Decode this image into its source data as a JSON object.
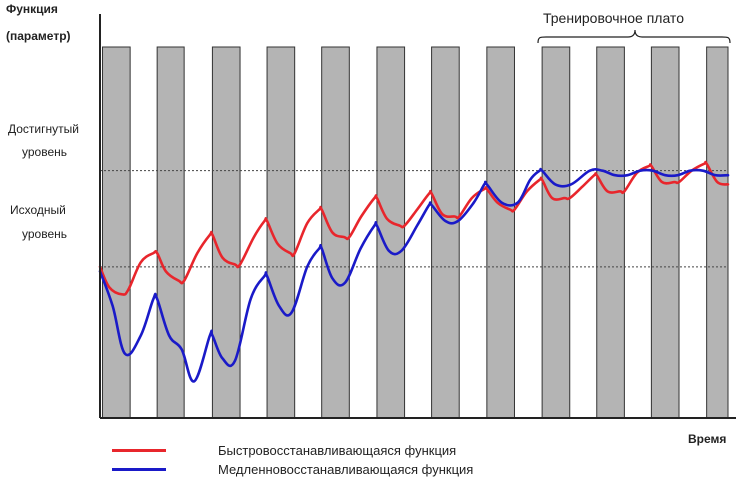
{
  "chart_data": {
    "type": "line",
    "ylabel": [
      "Функция",
      "(параметр)"
    ],
    "xlabel": "Время",
    "annotation": "Тренировочное плато",
    "ylim": [
      0,
      100
    ],
    "xlim": [
      0,
      100
    ],
    "y_levels": [
      {
        "name": "achieved",
        "lines": [
          "Достигнутый",
          "уровень"
        ],
        "value": 73
      },
      {
        "name": "baseline",
        "lines": [
          "Исходный",
          "уровень"
        ],
        "value": 52
      }
    ],
    "training_periods": [
      [
        0.4,
        4.8
      ],
      [
        9.1,
        13.4
      ],
      [
        17.9,
        22.3
      ],
      [
        26.6,
        31.0
      ],
      [
        35.3,
        39.7
      ],
      [
        44.1,
        48.5
      ],
      [
        52.8,
        57.2
      ],
      [
        61.6,
        66.0
      ],
      [
        70.4,
        74.8
      ],
      [
        79.1,
        83.5
      ],
      [
        87.8,
        92.2
      ],
      [
        96.6,
        100
      ]
    ],
    "series": [
      {
        "name": "Быстровосстанавливающаяся функция",
        "color": "#e8262c",
        "x": [
          0,
          1.5,
          3.5,
          4.5,
          6.5,
          8.5,
          9.1,
          10.5,
          12.5,
          13.4,
          15.5,
          17.5,
          17.9,
          19.5,
          21.5,
          22.3,
          24.5,
          26.2,
          26.6,
          28.3,
          30.3,
          31.0,
          33.0,
          34.9,
          35.3,
          37.0,
          38.9,
          39.7,
          41.6,
          43.7,
          44.1,
          45.7,
          47.7,
          48.5,
          50.5,
          52.4,
          52.8,
          54.5,
          56.5,
          57.2,
          59.2,
          61.2,
          61.6,
          63.3,
          65.3,
          66.0,
          68.0,
          70.0,
          70.4,
          72.0,
          74.0,
          74.8,
          76.8,
          78.7,
          79.1,
          80.8,
          82.8,
          83.5,
          85.5,
          87.4,
          87.8,
          89.5,
          91.5,
          92.2,
          94.2,
          96.2,
          96.6,
          98.3,
          100
        ],
        "values": [
          52,
          47.5,
          46,
          47,
          53,
          55,
          55,
          51,
          49,
          49,
          55,
          59,
          59,
          54,
          52.5,
          52.5,
          58.5,
          62,
          62,
          57,
          55,
          55,
          61.5,
          64.5,
          64.5,
          59.5,
          58.5,
          58.5,
          63,
          67,
          67,
          62.5,
          61,
          61,
          64.5,
          68,
          68,
          63.5,
          63,
          63,
          67,
          69,
          69,
          66,
          64.5,
          64.5,
          68.5,
          71,
          71,
          67,
          67,
          67,
          69.5,
          72,
          72,
          68.5,
          68.5,
          68.5,
          72.5,
          74,
          74,
          70.5,
          70.5,
          70.5,
          73,
          74.5,
          74.5,
          70.5,
          70
        ]
      },
      {
        "name": "Медленновосстанавливающаяся функция",
        "color": "#1a1ac8",
        "x": [
          0,
          2.0,
          4.0,
          6.5,
          8.5,
          9.1,
          11.0,
          13.0,
          15.0,
          17.5,
          17.9,
          19.5,
          21.5,
          24.0,
          26.2,
          26.6,
          28.5,
          30.5,
          33.0,
          34.9,
          35.3,
          37.0,
          39.0,
          41.5,
          43.7,
          44.1,
          46.0,
          48.0,
          50.5,
          52.4,
          52.8,
          55.0,
          57.0,
          59.5,
          61.2,
          61.6,
          64.0,
          66.5,
          68.5,
          70.0,
          70.4,
          72.5,
          75.0,
          78.0,
          80.0,
          82.0,
          84.0,
          86.0,
          88.0,
          90.0,
          92.0,
          94.0,
          96.0,
          98.0,
          100
        ],
        "values": [
          51,
          43.5,
          33,
          37,
          45,
          45,
          37,
          34,
          27,
          37,
          37,
          32,
          31.5,
          45,
          50,
          50,
          43.5,
          42,
          52,
          56,
          56,
          49.5,
          48.5,
          56,
          61,
          61,
          55.5,
          55.5,
          61,
          65.5,
          65.5,
          62,
          62,
          66,
          70,
          70,
          66,
          66,
          71,
          73,
          73,
          70,
          70,
          73,
          73,
          72,
          72,
          73,
          73,
          72,
          72,
          73,
          73,
          72,
          72
        ]
      }
    ]
  }
}
